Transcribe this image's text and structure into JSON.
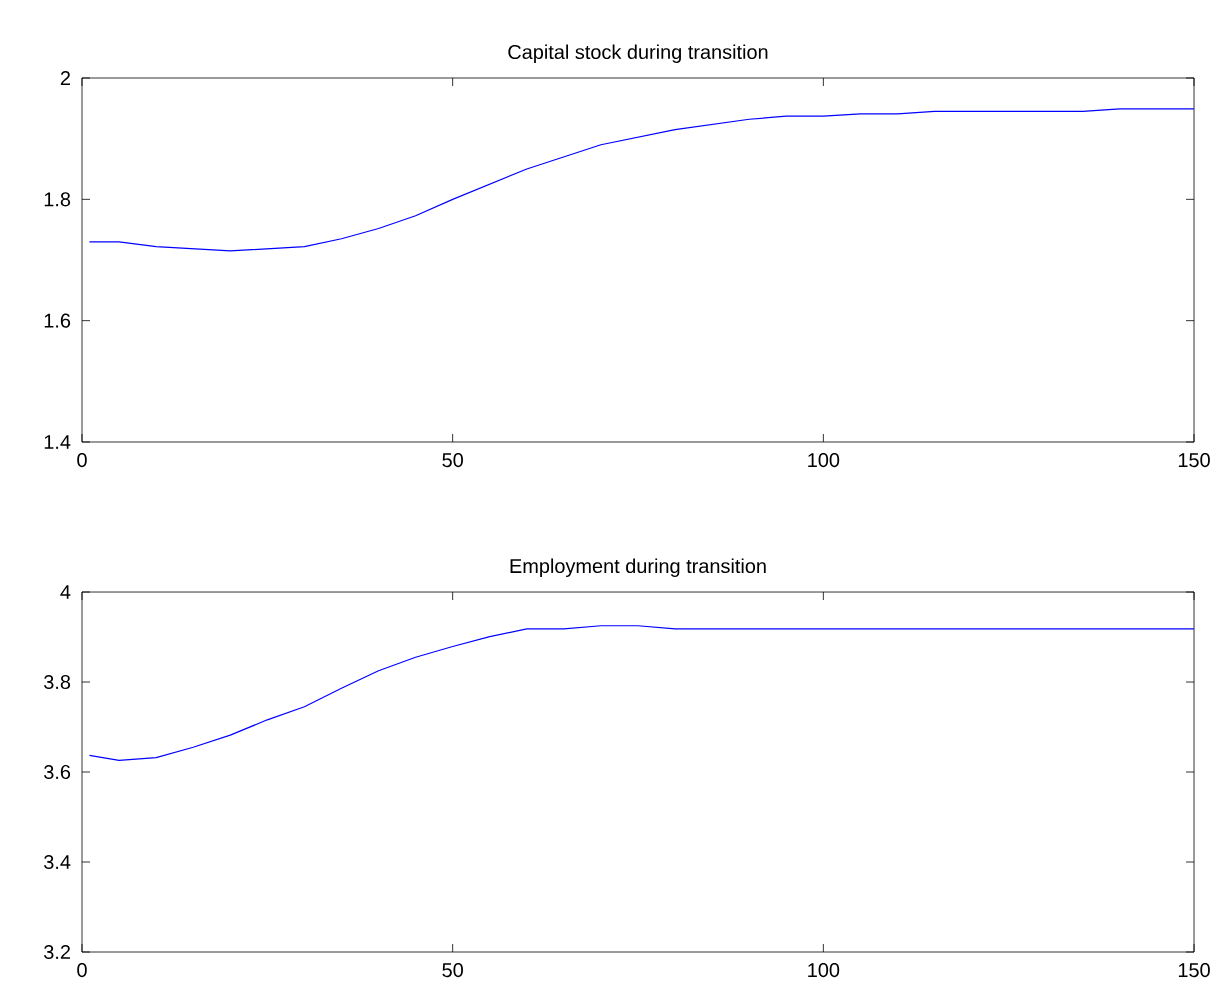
{
  "chart_data": [
    {
      "type": "line",
      "title": "Capital stock during transition",
      "x": [
        1,
        5,
        10,
        20,
        30,
        35,
        40,
        45,
        50,
        60,
        70,
        80,
        90,
        95,
        100,
        105,
        110,
        115,
        135,
        140,
        150
      ],
      "series": [
        {
          "color": "#0000ff",
          "values": [
            1.73,
            1.73,
            1.722,
            1.715,
            1.722,
            1.735,
            1.752,
            1.773,
            1.8,
            1.85,
            1.89,
            1.915,
            1.932,
            1.937,
            1.937,
            1.941,
            1.941,
            1.945,
            1.945,
            1.949,
            1.949
          ]
        }
      ],
      "xlim": [
        0,
        150
      ],
      "xticks": [
        0,
        50,
        100,
        150
      ],
      "ylim": [
        1.4,
        2
      ],
      "yticks": [
        1.4,
        1.6,
        1.8,
        2
      ]
    },
    {
      "type": "line",
      "title": "Employment during transition",
      "x": [
        1,
        5,
        10,
        15,
        20,
        25,
        30,
        35,
        40,
        45,
        50,
        55,
        60,
        65,
        70,
        75,
        80,
        150
      ],
      "series": [
        {
          "color": "#0000ff",
          "values": [
            3.637,
            3.626,
            3.632,
            3.655,
            3.682,
            3.716,
            3.745,
            3.786,
            3.825,
            3.855,
            3.879,
            3.901,
            3.918,
            3.918,
            3.925,
            3.925,
            3.918,
            3.918
          ]
        }
      ],
      "xlim": [
        0,
        150
      ],
      "xticks": [
        0,
        50,
        100,
        150
      ],
      "ylim": [
        3.2,
        4
      ],
      "yticks": [
        3.2,
        3.4,
        3.6,
        3.8,
        4
      ]
    }
  ]
}
